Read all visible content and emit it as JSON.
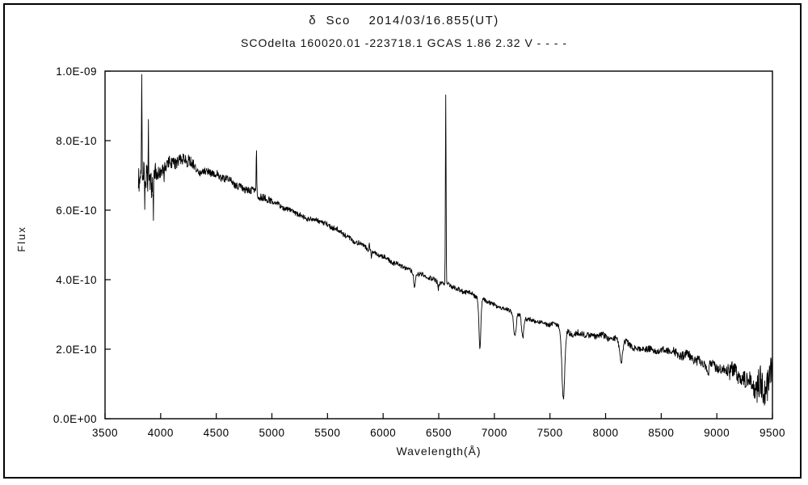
{
  "window": {
    "background": "#ffffff",
    "frame_border_color": "#000000",
    "line_color": "#000000"
  },
  "chart_data": {
    "type": "line",
    "title": "δ  Sco    2014/03/16.855(UT)",
    "subtitle": "SCOdelta 160020.01 -223718.1 GCAS 1.86 2.32 V - - - -",
    "xlabel": "Wavelength(Å)",
    "ylabel": "Flux",
    "grid": false,
    "legend": "none",
    "xlim": [
      3500,
      9500
    ],
    "ylim": [
      0,
      1e-09
    ],
    "x_ticks": [
      3500,
      4000,
      4500,
      5000,
      5500,
      6000,
      6500,
      7000,
      7500,
      8000,
      8500,
      9000,
      9500
    ],
    "x_tick_labels": [
      "3500",
      "4000",
      "4500",
      "5000",
      "5500",
      "6000",
      "6500",
      "7000",
      "7500",
      "8000",
      "8500",
      "9000",
      "9500"
    ],
    "y_ticks": [
      0,
      2e-10,
      4e-10,
      6e-10,
      8e-10,
      1e-09
    ],
    "y_tick_labels": [
      "0.0E+00",
      "2.0E-10",
      "4.0E-10",
      "6.0E-10",
      "8.0E-10",
      "1.0E-09"
    ],
    "line_color": "#000000",
    "data_range": [
      3800,
      9500
    ],
    "sample_step": 3,
    "noise_seed": 20140316,
    "continuum": [
      [
        3800,
        6.9e-10
      ],
      [
        3900,
        6.85e-10
      ],
      [
        4000,
        7.1e-10
      ],
      [
        4120,
        7.45e-10
      ],
      [
        4250,
        7.4e-10
      ],
      [
        4350,
        7.1e-10
      ],
      [
        4500,
        7.05e-10
      ],
      [
        4700,
        6.7e-10
      ],
      [
        4861,
        6.47e-10
      ],
      [
        5000,
        6.25e-10
      ],
      [
        5250,
        5.85e-10
      ],
      [
        5500,
        5.6e-10
      ],
      [
        5750,
        5.1e-10
      ],
      [
        6000,
        4.65e-10
      ],
      [
        6250,
        4.25e-10
      ],
      [
        6500,
        3.95e-10
      ],
      [
        6700,
        3.7e-10
      ],
      [
        6900,
        3.45e-10
      ],
      [
        7000,
        3.25e-10
      ],
      [
        7150,
        3.1e-10
      ],
      [
        7350,
        2.8e-10
      ],
      [
        7550,
        2.7e-10
      ],
      [
        7700,
        2.45e-10
      ],
      [
        7900,
        2.4e-10
      ],
      [
        8100,
        2.3e-10
      ],
      [
        8300,
        2e-10
      ],
      [
        8600,
        1.95e-10
      ],
      [
        8800,
        1.7e-10
      ],
      [
        9000,
        1.5e-10
      ],
      [
        9150,
        1.3e-10
      ],
      [
        9300,
        1.1e-10
      ],
      [
        9400,
        9.5e-11
      ],
      [
        9500,
        1.15e-10
      ]
    ],
    "emission_lines": [
      {
        "name": "blue-end-spike",
        "center": 3830,
        "amplitude": 2.9e-10,
        "fwhm": 5
      },
      {
        "name": "H8-spike",
        "center": 3889,
        "amplitude": 1.8e-10,
        "fwhm": 4
      },
      {
        "name": "H-beta",
        "center": 4861,
        "amplitude": 1.3e-10,
        "fwhm": 6
      },
      {
        "name": "He-5876",
        "center": 5876,
        "amplitude": 2.5e-11,
        "fwhm": 6
      },
      {
        "name": "H-alpha",
        "center": 6563,
        "amplitude": 5.4e-10,
        "fwhm": 7
      }
    ],
    "absorption_bands": [
      {
        "name": "noise-dip-1",
        "center": 3858,
        "depth": 9e-11,
        "fwhm": 4
      },
      {
        "name": "noise-dip-2",
        "center": 3935,
        "depth": 8.5e-11,
        "fwhm": 5
      },
      {
        "name": "noise-dip-3",
        "center": 4030,
        "depth": 5e-11,
        "fwhm": 5
      },
      {
        "name": "Na-D",
        "center": 5895,
        "depth": 2e-11,
        "fwhm": 6
      },
      {
        "name": "telluric-6280",
        "center": 6282,
        "depth": 4.5e-11,
        "fwhm": 14
      },
      {
        "name": "dip-6495",
        "center": 6495,
        "depth": 2e-11,
        "fwhm": 10
      },
      {
        "name": "O2-B-band",
        "center": 6870,
        "depth": 1.5e-10,
        "fwhm": 20
      },
      {
        "name": "H2O-7185",
        "center": 7185,
        "depth": 7e-11,
        "fwhm": 25
      },
      {
        "name": "H2O-7255",
        "center": 7255,
        "depth": 6e-11,
        "fwhm": 22
      },
      {
        "name": "O2-A-band",
        "center": 7620,
        "depth": 2e-10,
        "fwhm": 30
      },
      {
        "name": "H2O-8140",
        "center": 8140,
        "depth": 6e-11,
        "fwhm": 30
      },
      {
        "name": "dip-8920",
        "center": 8920,
        "depth": 3e-11,
        "fwhm": 25
      },
      {
        "name": "H2O-9350",
        "center": 9350,
        "depth": 3e-11,
        "fwhm": 40
      }
    ],
    "noise_segments": [
      {
        "from": 3800,
        "to": 3960,
        "amplitude": 3.8e-11
      },
      {
        "from": 3960,
        "to": 4300,
        "amplitude": 1.8e-11
      },
      {
        "from": 4300,
        "to": 5000,
        "amplitude": 1.1e-11
      },
      {
        "from": 5000,
        "to": 6500,
        "amplitude": 7e-12
      },
      {
        "from": 6500,
        "to": 7600,
        "amplitude": 6.5e-12
      },
      {
        "from": 7600,
        "to": 8600,
        "amplitude": 9e-12
      },
      {
        "from": 8600,
        "to": 9100,
        "amplitude": 1.4e-11
      },
      {
        "from": 9100,
        "to": 9350,
        "amplitude": 2.6e-11
      },
      {
        "from": 9350,
        "to": 9501,
        "amplitude": 5e-11
      }
    ]
  }
}
